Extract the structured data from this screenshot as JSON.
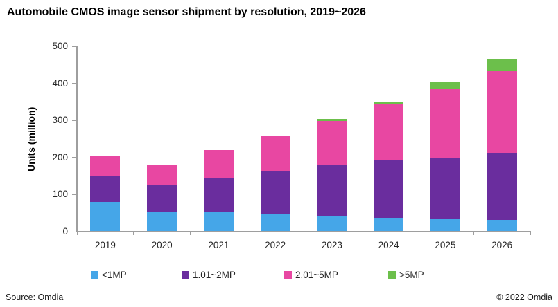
{
  "title": "Automobile CMOS image sensor shipment by resolution, 2019~2026",
  "footer": {
    "source": "Source: Omdia",
    "copyright": "© 2022 Omdia"
  },
  "chart_data": {
    "type": "bar",
    "stacked": true,
    "title": "Automobile CMOS image sensor shipment by resolution, 2019~2026",
    "xlabel": "",
    "ylabel": "Units (million)",
    "ylim": [
      0,
      500
    ],
    "yticks": [
      0,
      100,
      200,
      300,
      400,
      500
    ],
    "grid": false,
    "legend_position": "bottom",
    "categories": [
      "2019",
      "2020",
      "2021",
      "2022",
      "2023",
      "2024",
      "2025",
      "2026"
    ],
    "series": [
      {
        "name": "<1MP",
        "color": "#45A6E8",
        "values": [
          78,
          53,
          50,
          46,
          39,
          35,
          33,
          31
        ]
      },
      {
        "name": "1.01~2MP",
        "color": "#6A2D9E",
        "values": [
          71,
          71,
          95,
          115,
          138,
          156,
          164,
          180
        ]
      },
      {
        "name": "2.01~5MP",
        "color": "#E847A2",
        "values": [
          55,
          53,
          74,
          97,
          120,
          151,
          188,
          221
        ]
      },
      {
        "name": ">5MP",
        "color": "#6CBF4B",
        "values": [
          0,
          0,
          0,
          0,
          6,
          8,
          19,
          32
        ]
      }
    ],
    "totals": [
      204,
      177,
      219,
      258,
      303,
      350,
      404,
      464
    ]
  }
}
